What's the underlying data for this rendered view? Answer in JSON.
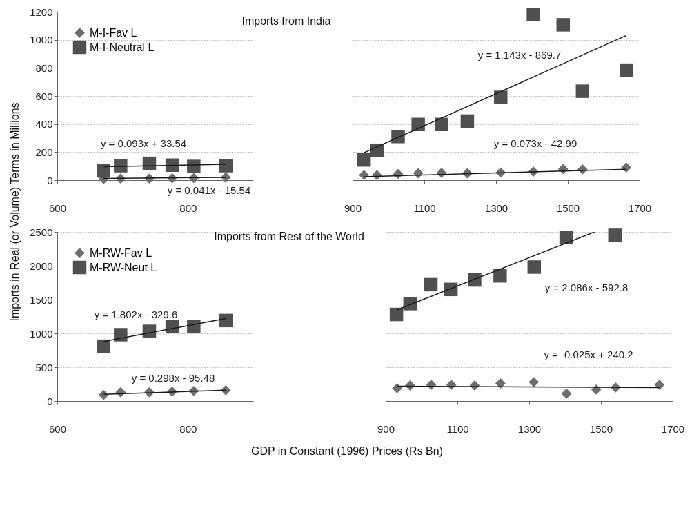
{
  "chart_data": [
    {
      "type": "scatter",
      "title": "Imports from India",
      "ylabel": "Imports in Real (or Volume) Terms in Millions",
      "xlim": [
        600,
        900
      ],
      "xticks": [
        600,
        800
      ],
      "ylim": [
        0,
        1200
      ],
      "yticks": [
        0,
        200,
        400,
        600,
        800,
        1000,
        1200
      ],
      "grid": "y",
      "legend": "top left",
      "annotations": [
        "y = 0.093x + 33.54",
        "y = 0.041x - 15.54"
      ],
      "series": [
        {
          "name": "M-I-Fav L",
          "color": "#6e6e6e",
          "marker": "diamond",
          "x": [
            671,
            697,
            741,
            776,
            809,
            858
          ],
          "values": [
            8,
            12,
            12,
            14,
            15,
            20
          ]
        },
        {
          "name": "M-I-Neutral L",
          "color": "#505050",
          "marker": "square",
          "x": [
            671,
            697,
            741,
            776,
            809,
            858
          ],
          "values": [
            66,
            103,
            120,
            107,
            98,
            103
          ]
        },
        {
          "type": "line",
          "color": "#1a1a1a",
          "x": [
            671,
            858
          ],
          "values": [
            96,
            113
          ]
        },
        {
          "type": "line",
          "color": "#1a1a1a",
          "x": [
            671,
            858
          ],
          "values": [
            12,
            20
          ]
        }
      ]
    },
    {
      "type": "scatter",
      "xlim": [
        900,
        1700
      ],
      "xticks": [
        900,
        1100,
        1300,
        1500,
        1700
      ],
      "ylim": [
        0,
        1200
      ],
      "yticks": [
        0,
        200,
        400,
        600,
        800,
        1000,
        1200
      ],
      "grid": "y",
      "tick_labels": "x",
      "annotations": [
        "y = 1.143x - 869.7",
        "y = 0.073x - 42.99"
      ],
      "series": [
        {
          "color": "#6e6e6e",
          "marker": "diamond",
          "x": [
            932,
            968,
            1027,
            1083,
            1148,
            1220,
            1313,
            1404,
            1487,
            1541,
            1663
          ],
          "values": [
            36,
            36,
            44,
            49,
            52,
            49,
            54,
            61,
            80,
            77,
            90
          ]
        },
        {
          "color": "#505050",
          "marker": "square",
          "x": [
            932,
            968,
            1027,
            1083,
            1148,
            1220,
            1313,
            1404,
            1487,
            1541,
            1663
          ],
          "values": [
            144,
            213,
            311,
            397,
            397,
            421,
            590,
            1180,
            1107,
            634,
            784
          ]
        },
        {
          "type": "line",
          "color": "#1a1a1a",
          "x": [
            932,
            1663
          ],
          "values": [
            196,
            1031
          ]
        },
        {
          "type": "line",
          "color": "#1a1a1a",
          "x": [
            932,
            1663
          ],
          "values": [
            25,
            78
          ]
        }
      ]
    },
    {
      "type": "scatter",
      "title": "Imports from Rest of the World",
      "xlabel": "GDP in Constant (1996) Prices (Rs Bn)",
      "xlim": [
        600,
        900
      ],
      "xticks": [
        600,
        800
      ],
      "ylim": [
        0,
        2500
      ],
      "yticks": [
        0,
        500,
        1000,
        1500,
        2000,
        2500
      ],
      "grid": "y",
      "legend": "top left",
      "annotations": [
        "y = 1.802x - 329.6",
        "y = 0.298x - 95.48"
      ],
      "series": [
        {
          "name": "M-RW-Fav L",
          "color": "#6e6e6e",
          "marker": "diamond",
          "x": [
            671,
            697,
            741,
            776,
            809,
            858
          ],
          "values": [
            90,
            130,
            130,
            140,
            150,
            160
          ]
        },
        {
          "name": "M-RW-Neut L",
          "color": "#505050",
          "marker": "square",
          "x": [
            671,
            697,
            741,
            776,
            809,
            858
          ],
          "values": [
            810,
            980,
            1030,
            1100,
            1100,
            1190
          ]
        },
        {
          "type": "line",
          "color": "#1a1a1a",
          "x": [
            671,
            858
          ],
          "values": [
            880,
            1220
          ]
        },
        {
          "type": "line",
          "color": "#1a1a1a",
          "x": [
            671,
            858
          ],
          "values": [
            100,
            160
          ]
        }
      ]
    },
    {
      "type": "scatter",
      "xlim": [
        900,
        1700
      ],
      "xticks": [
        900,
        1100,
        1300,
        1500,
        1700
      ],
      "ylim": [
        0,
        2500
      ],
      "yticks": [
        0,
        500,
        1000,
        1500,
        2000,
        2500
      ],
      "grid": "y",
      "tick_labels": "x",
      "annotations": [
        "y = 2.086x - 592.8",
        "y = -0.025x + 240.2"
      ],
      "series": [
        {
          "color": "#6e6e6e",
          "marker": "diamond",
          "x": [
            932,
            968,
            1027,
            1083,
            1148,
            1220,
            1313,
            1404,
            1487,
            1541,
            1663
          ],
          "values": [
            190,
            230,
            240,
            240,
            230,
            260,
            280,
            110,
            170,
            200,
            240
          ]
        },
        {
          "color": "#505050",
          "marker": "square",
          "x": [
            930,
            968,
            1026,
            1082,
            1148,
            1219,
            1314,
            1403,
            1539
          ],
          "values": [
            1280,
            1440,
            1720,
            1650,
            1790,
            1850,
            1980,
            2420,
            2450
          ]
        },
        {
          "type": "line",
          "color": "#1a1a1a",
          "x": [
            932,
            1482
          ],
          "values": [
            1350,
            2500
          ]
        },
        {
          "type": "line",
          "color": "#1a1a1a",
          "x": [
            932,
            1663
          ],
          "values": [
            220,
            200
          ]
        }
      ]
    }
  ]
}
